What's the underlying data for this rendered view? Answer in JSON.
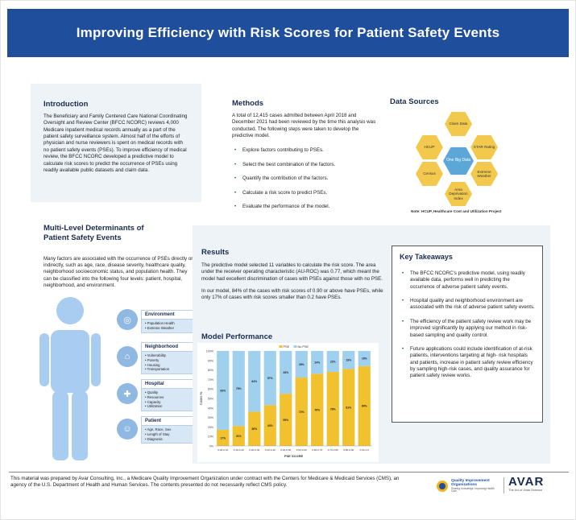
{
  "title": "Improving Efficiency with Risk Scores for Patient Safety Events",
  "intro": {
    "heading": "Introduction",
    "text": "The Beneficiary and Family Centered Care National Coordinating Oversight and Review Center (BFCC NCORC) reviews 4,000 Medicare inpatient medical records annually as a part of the patient safety surveillance system. Almost half of the efforts of physician and nurse reviewers is spent on medical records with no patient safety events (PSEs). To improve efficiency of medical review, the BFCC NCORC developed a predictive model to calculate risk scores to predict the occurrence of PSEs using readily available public datasets and claim data."
  },
  "methods": {
    "heading": "Methods",
    "text": "A total of 12,415 cases admitted between April 2018 and December 2021 had been reviewed by the time this analysis was conducted. The following steps were taken to develop the predictive model.",
    "steps": [
      "Explore factors contributing to PSEs.",
      "Select the best combination of the factors.",
      "Quantify the contribution of the factors.",
      "Calculate a risk score to predict PSEs.",
      "Evaluate the performance of the model."
    ]
  },
  "data_sources": {
    "heading": "Data Sources",
    "center": "One Big Data",
    "items": [
      "Claim Data",
      "STAR Rating",
      "Extreme Weather",
      "Area Deprivation Index",
      "Census",
      "HCUP"
    ],
    "note": "Note: HCUP, Healthcare Cost and Utilization Project"
  },
  "determinants": {
    "heading": "Multi-Level Determinants of Patient Safety Events",
    "text": "Many factors are associated with the occurrence of PSEs directly or indirectly, such as age, race, disease severity, healthcare quality, neighborhood socioeconomic status, and population health. They can be classified into the following four levels: patient, hospital, neighborhood, and environment.",
    "levels": [
      {
        "name": "Environment",
        "items": [
          "Population Health",
          "Extreme Weather"
        ]
      },
      {
        "name": "Neighborhood",
        "items": [
          "Vulnerability",
          "Poverty",
          "Housing",
          "Transportation"
        ]
      },
      {
        "name": "Hospital",
        "items": [
          "Quality",
          "Resources",
          "Capacity",
          "Utilization"
        ]
      },
      {
        "name": "Patient",
        "items": [
          "Age, Race, Sex",
          "Length of Stay",
          "Diagnosis"
        ]
      }
    ]
  },
  "results": {
    "heading": "Results",
    "p1": "The predictive model selected 11 variables to calculate the risk score. The area under the receiver operating characteristic (AU-ROC) was 0.77, which meant the model had excellent discrimination of cases with PSEs against those with no PSE.",
    "p2": "In our model, 84% of the cases with risk scores of 0.90 or above have PSEs, while only 17% of cases with risk scores smaller than 0.2 have PSEs."
  },
  "model_performance": {
    "heading": "Model Performance"
  },
  "chart_data": {
    "type": "bar",
    "stacked": true,
    "categories": [
      "0.00-0.10",
      "0.10-0.20",
      "0.20-0.30",
      "0.30-0.40",
      "0.40-0.50",
      "0.50-0.60",
      "0.60-0.70",
      "0.70-0.80",
      "0.80-0.90",
      "0.90-1.0"
    ],
    "series": [
      {
        "name": "PSE",
        "values": [
          17,
          21,
          36,
          43,
          55,
          72,
          76,
          78,
          81,
          84
        ],
        "labels": [
          "17%",
          "21%",
          "36%",
          "43%",
          "55%",
          "72%",
          "76%",
          "78%",
          "81%",
          "84%"
        ],
        "color": "#f2c12e"
      },
      {
        "name": "No PSE",
        "values": [
          83,
          79,
          64,
          57,
          45,
          28,
          24,
          22,
          19,
          16
        ],
        "labels": [
          "83%",
          "79%",
          "64%",
          "57%",
          "45%",
          "28%",
          "24%",
          "22%",
          "19%",
          "16%"
        ],
        "color": "#9fd0ee"
      }
    ],
    "legend": [
      "PSE",
      "No PSE"
    ],
    "xlabel": "PSE SCORE",
    "ylabel": "Cases %",
    "yticks": [
      "100%",
      "90%",
      "80%",
      "70%",
      "60%",
      "50%",
      "40%",
      "30%",
      "20%",
      "10%",
      "0%"
    ],
    "ylim": [
      0,
      100
    ],
    "legend_position": "top-center",
    "grid": false
  },
  "takeaways": {
    "heading": "Key Takeaways",
    "items": [
      "The BFCC NCORC's predictive model, using readily available data, performs well in predicting the occurrence of adverse patient safety events.",
      "Hospital quality and neighborhood environment are associated with the risk of adverse patient safety events.",
      "The efficiency of the patient safety review work may be improved significantly by applying our method in risk-based sampling and quality control.",
      "Future applications could include identification of at-risk patients, interventions targeting at high- risk hospitals and patients, increase in patient safety review efficiency by sampling high-risk cases, and quality assurance for patient safety review works."
    ]
  },
  "footer": "This material was prepared by Avar Consulting, Inc., a Medicare Quality Improvement Organization under contract with the Centers for Medicare & Medicaid Services (CMS), an agency of the U.S. Department of Health and Human Services. The contents presented do not necessarily reflect CMS policy.",
  "logos": {
    "qio": "Quality Improvement Organizations",
    "qio_sub": "Sharing Knowledge. Improving Health Care.",
    "avar": "AVAR",
    "avar_tag": "The Art of Data Science"
  }
}
